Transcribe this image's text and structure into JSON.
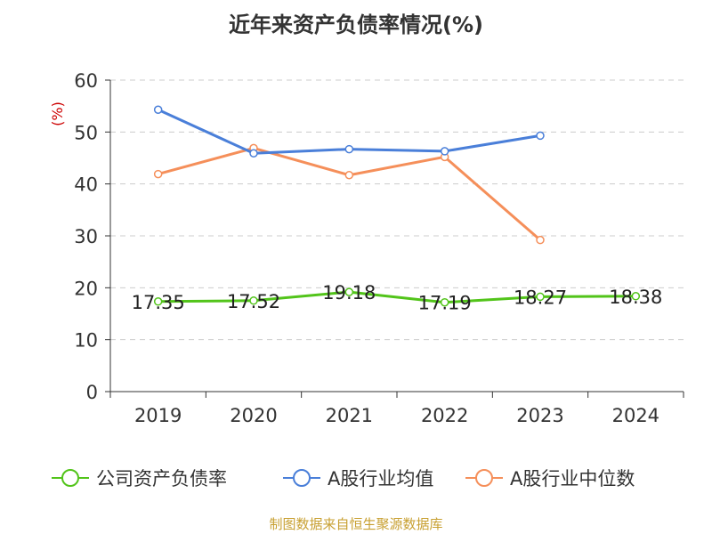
{
  "chart_data": {
    "type": "line",
    "title": "近年来资产负债率情况(%)",
    "ylabel": "(%)",
    "xlabel": "",
    "categories": [
      "2019",
      "2020",
      "2021",
      "2022",
      "2023",
      "2024"
    ],
    "ylim": [
      0,
      60
    ],
    "yticks": [
      0,
      10,
      20,
      30,
      40,
      50,
      60
    ],
    "grid": "horizontal dashed",
    "legend_position": "bottom",
    "series": [
      {
        "name": "公司资产负债率",
        "color": "#52c41a",
        "values": [
          17.35,
          17.52,
          19.18,
          17.19,
          18.27,
          18.38
        ],
        "show_labels": true
      },
      {
        "name": "A股行业均值",
        "color": "#4a7fd9",
        "values": [
          54.3,
          45.9,
          46.7,
          46.3,
          49.3,
          null
        ],
        "show_labels": false
      },
      {
        "name": "A股行业中位数",
        "color": "#f58f5a",
        "values": [
          41.9,
          46.9,
          41.7,
          45.2,
          29.2,
          null
        ],
        "show_labels": false
      }
    ]
  },
  "source": {
    "text": "制图数据来自恒生聚源数据库",
    "color": "#c8a032"
  },
  "colors": {
    "axis": "#333333",
    "grid": "#cccccc",
    "ylabel": "#cc0000"
  }
}
